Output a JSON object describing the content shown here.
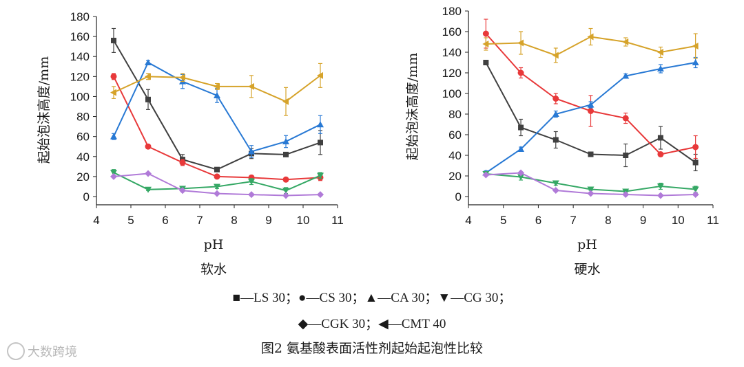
{
  "chart_data": [
    {
      "type": "line",
      "title": "软水",
      "xlabel": "pH",
      "ylabel": "起始泡沫高度/mm",
      "xlim": [
        4,
        11
      ],
      "ylim": [
        0,
        180
      ],
      "xticks": [
        "4",
        "5",
        "6",
        "7",
        "8",
        "9",
        "10",
        "11"
      ],
      "yticks": [
        "0",
        "20",
        "40",
        "60",
        "80",
        "100",
        "120",
        "140",
        "160",
        "180"
      ],
      "x": [
        4.5,
        5.5,
        6.5,
        7.5,
        8.5,
        9.5,
        10.5
      ],
      "series": [
        {
          "name": "LS 30",
          "marker": "square",
          "color": "#404040",
          "values": [
            156,
            97,
            37,
            27,
            43,
            42,
            54
          ],
          "errors": [
            12,
            10,
            5,
            2,
            5,
            2,
            12
          ]
        },
        {
          "name": "CS 30",
          "marker": "circle",
          "color": "#e8393a",
          "values": [
            120,
            50,
            34,
            20,
            19,
            17,
            19
          ],
          "errors": [
            3,
            2,
            3,
            2,
            2,
            2,
            3
          ]
        },
        {
          "name": "CA 30",
          "marker": "triangle-up",
          "color": "#2879d4",
          "values": [
            60,
            134,
            115,
            101,
            45,
            55,
            72
          ],
          "errors": [
            3,
            2,
            7,
            7,
            6,
            6,
            9
          ]
        },
        {
          "name": "CG 30",
          "marker": "triangle-down",
          "color": "#35a865",
          "values": [
            24,
            7,
            8,
            10,
            15,
            6,
            21
          ],
          "errors": [
            3,
            1,
            1,
            2,
            3,
            3,
            3
          ]
        },
        {
          "name": "CGK 30",
          "marker": "diamond",
          "color": "#b07ad8",
          "values": [
            20,
            23,
            6,
            3,
            2,
            1,
            2
          ],
          "errors": [
            1,
            1,
            1,
            1,
            1,
            1,
            1
          ]
        },
        {
          "name": "CMT 40",
          "marker": "triangle-left",
          "color": "#d6a32a",
          "values": [
            104,
            120,
            119,
            110,
            110,
            95,
            121
          ],
          "errors": [
            6,
            3,
            4,
            3,
            11,
            14,
            12
          ]
        }
      ]
    },
    {
      "type": "line",
      "title": "硬水",
      "xlabel": "pH",
      "ylabel": "起始泡沫高度/mm",
      "xlim": [
        4,
        11
      ],
      "ylim": [
        0,
        180
      ],
      "xticks": [
        "4",
        "5",
        "6",
        "7",
        "8",
        "9",
        "10",
        "11"
      ],
      "yticks": [
        "0",
        "20",
        "40",
        "60",
        "80",
        "100",
        "120",
        "140",
        "160",
        "180"
      ],
      "x": [
        4.5,
        5.5,
        6.5,
        7.5,
        8.5,
        9.5,
        10.5
      ],
      "series": [
        {
          "name": "LS 30",
          "marker": "square",
          "color": "#404040",
          "values": [
            130,
            67,
            55,
            41,
            40,
            57,
            33
          ],
          "errors": [
            2,
            8,
            8,
            1,
            11,
            11,
            8
          ]
        },
        {
          "name": "CS 30",
          "marker": "circle",
          "color": "#e8393a",
          "values": [
            158,
            120,
            95,
            83,
            76,
            41,
            48
          ],
          "errors": [
            14,
            5,
            5,
            15,
            5,
            2,
            11
          ]
        },
        {
          "name": "CA 30",
          "marker": "triangle-up",
          "color": "#2879d4",
          "values": [
            23,
            46,
            80,
            89,
            117,
            124,
            130
          ],
          "errors": [
            2,
            2,
            3,
            3,
            2,
            4,
            5
          ]
        },
        {
          "name": "CG 30",
          "marker": "triangle-down",
          "color": "#35a865",
          "values": [
            22,
            19,
            13,
            7,
            5,
            10,
            7
          ],
          "errors": [
            2,
            3,
            2,
            1,
            1,
            3,
            3
          ]
        },
        {
          "name": "CGK 30",
          "marker": "diamond",
          "color": "#b07ad8",
          "values": [
            21,
            23,
            6,
            3,
            2,
            1,
            2
          ],
          "errors": [
            1,
            1,
            1,
            1,
            1,
            1,
            1
          ]
        },
        {
          "name": "CMT 40",
          "marker": "triangle-left",
          "color": "#d6a32a",
          "values": [
            148,
            149,
            137,
            155,
            150,
            140,
            146
          ],
          "errors": [
            6,
            11,
            7,
            8,
            4,
            5,
            12
          ]
        }
      ]
    }
  ],
  "legend": {
    "row1": "■—LS 30；●—CS 30；▲—CA 30；▼—CG 30；",
    "row2": "◆—CGK 30；◀—CMT 40"
  },
  "caption": "图2   氨基酸表面活性剂起始起泡性比较",
  "watermark": "大数跨境"
}
